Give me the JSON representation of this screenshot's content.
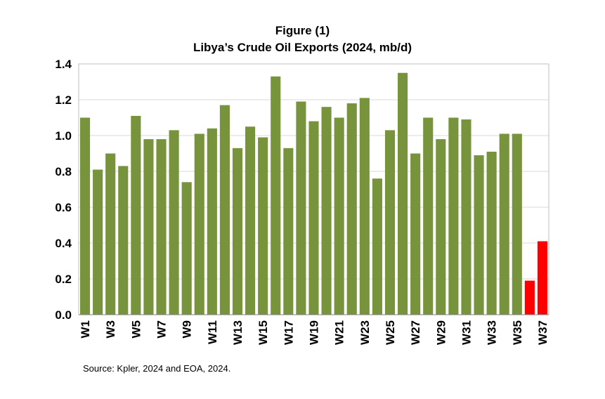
{
  "chart_data": {
    "type": "bar",
    "title": "Figure (1)",
    "subtitle": "Libya’s Crude Oil Exports (2024, mb/d)",
    "xlabel": "",
    "ylabel": "",
    "ylim": [
      0,
      1.4
    ],
    "yticks": [
      "0.0",
      "0.2",
      "0.4",
      "0.6",
      "0.8",
      "1.0",
      "1.2",
      "1.4"
    ],
    "grid": true,
    "legend": "none",
    "categories": [
      "W1",
      "W2",
      "W3",
      "W4",
      "W5",
      "W6",
      "W7",
      "W8",
      "W9",
      "W10",
      "W11",
      "W12",
      "W13",
      "W14",
      "W15",
      "W16",
      "W17",
      "W18",
      "W19",
      "W20",
      "W21",
      "W22",
      "W23",
      "W24",
      "W25",
      "W26",
      "W27",
      "W28",
      "W29",
      "W30",
      "W31",
      "W32",
      "W33",
      "W34",
      "W35",
      "W36",
      "W37"
    ],
    "tick_labels": [
      "W1",
      "",
      "W3",
      "",
      "W5",
      "",
      "W7",
      "",
      "W9",
      "",
      "W11",
      "",
      "W13",
      "",
      "W15",
      "",
      "W17",
      "",
      "W19",
      "",
      "W21",
      "",
      "W23",
      "",
      "W25",
      "",
      "W27",
      "",
      "W29",
      "",
      "W31",
      "",
      "W33",
      "",
      "W35",
      "",
      "W37"
    ],
    "values": [
      1.1,
      0.81,
      0.9,
      0.83,
      1.11,
      0.98,
      0.98,
      1.03,
      0.74,
      1.01,
      1.04,
      1.17,
      0.93,
      1.05,
      0.99,
      1.33,
      0.93,
      1.19,
      1.08,
      1.16,
      1.1,
      1.18,
      1.21,
      0.76,
      1.03,
      1.35,
      0.9,
      1.1,
      0.98,
      1.1,
      1.09,
      0.89,
      0.91,
      1.01,
      1.01,
      0.19,
      0.41
    ],
    "colors": {
      "normal": "#77933C",
      "highlight": "#FF0000"
    },
    "highlight_categories": [
      "W36",
      "W37"
    ]
  },
  "source": "Source: Kpler, 2024 and EOA, 2024."
}
